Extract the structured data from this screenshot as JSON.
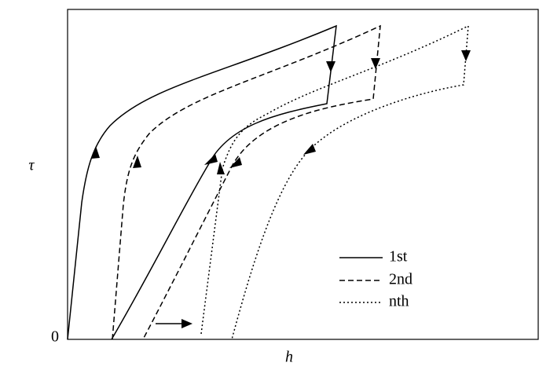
{
  "axes": {
    "y_label": "τ",
    "x_label": "h",
    "origin_label": "0"
  },
  "legend": [
    "1st",
    "2nd",
    "nth"
  ]
}
